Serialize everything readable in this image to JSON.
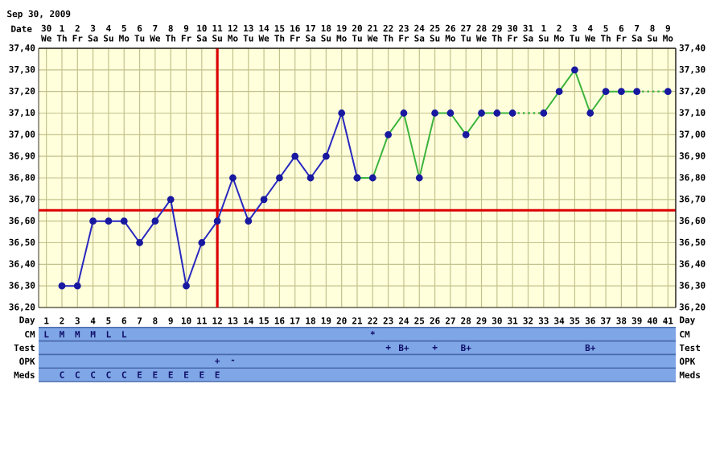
{
  "chart_data": [
    {
      "type": "line",
      "title": "Sep 30, 2009",
      "xlabel": "Date",
      "marker": "circle",
      "grid": true,
      "categories": [
        "30 We",
        "1 Th",
        "2 Fr",
        "3 Sa",
        "4 Su",
        "5 Mo",
        "6 Tu",
        "7 We",
        "8 Th",
        "9 Fr",
        "10 Sa",
        "11 Su",
        "12 Mo",
        "13 Tu",
        "14 We",
        "15 Th",
        "16 Fr",
        "17 Sa",
        "18 Su",
        "19 Mo",
        "20 Tu",
        "21 We",
        "22 Th",
        "23 Fr",
        "24 Sa",
        "25 Su",
        "26 Mo",
        "27 Tu",
        "28 We",
        "29 Th",
        "30 Fr",
        "31 Sa",
        "1 Su",
        "2 Mo",
        "3 Tu",
        "4 We",
        "5 Th",
        "6 Fr",
        "7 Sa",
        "8 Su",
        "9 Mo"
      ],
      "ylim": [
        36.2,
        37.4
      ],
      "yticks": [
        {
          "value": 36.2,
          "label": "36,20"
        },
        {
          "value": 36.3,
          "label": "36,30"
        },
        {
          "value": 36.4,
          "label": "36,40"
        },
        {
          "value": 36.5,
          "label": "36,50"
        },
        {
          "value": 36.6,
          "label": "36,60"
        },
        {
          "value": 36.7,
          "label": "36,70"
        },
        {
          "value": 36.8,
          "label": "36,80"
        },
        {
          "value": 36.9,
          "label": "36,90"
        },
        {
          "value": 37.0,
          "label": "37,00"
        },
        {
          "value": 37.1,
          "label": "37,10"
        },
        {
          "value": 37.2,
          "label": "37,20"
        },
        {
          "value": 37.3,
          "label": "37,30"
        },
        {
          "value": 37.4,
          "label": "37,40"
        }
      ],
      "y2lim": [
        36.2,
        37.4
      ],
      "y2ticks": [
        {
          "value": 36.2,
          "label": "36,20"
        },
        {
          "value": 36.3,
          "label": "36,30"
        },
        {
          "value": 36.4,
          "label": "36,40"
        },
        {
          "value": 36.5,
          "label": "36,50"
        },
        {
          "value": 36.6,
          "label": "36,60"
        },
        {
          "value": 36.7,
          "label": "36,70"
        },
        {
          "value": 36.8,
          "label": "36,80"
        },
        {
          "value": 36.9,
          "label": "36,90"
        },
        {
          "value": 37.0,
          "label": "37,00"
        },
        {
          "value": 37.1,
          "label": "37,10"
        },
        {
          "value": 37.2,
          "label": "37,20"
        },
        {
          "value": 37.3,
          "label": "37,30"
        },
        {
          "value": 37.4,
          "label": "37,40"
        }
      ],
      "ref_lines": [
        {
          "axis": "x",
          "value": "11 Su",
          "color": "#dd0000"
        },
        {
          "axis": "y",
          "value": 36.65,
          "color": "#dd0000"
        }
      ],
      "series": [
        {
          "color": "#2828c0",
          "values": [
            null,
            36.3,
            36.3,
            36.6,
            36.6,
            36.6,
            36.5,
            36.6,
            36.7,
            36.3,
            36.5,
            36.6,
            36.8,
            36.6,
            36.7,
            36.8,
            36.9,
            36.8,
            36.9,
            37.1,
            36.8,
            null,
            null,
            null,
            null,
            null,
            null,
            null,
            null,
            null,
            null,
            null,
            null,
            null,
            null,
            null,
            null,
            null,
            null,
            null,
            null
          ]
        },
        {
          "color": "#3cb43c",
          "values": [
            null,
            null,
            null,
            null,
            null,
            null,
            null,
            null,
            null,
            null,
            null,
            null,
            null,
            null,
            null,
            null,
            null,
            null,
            null,
            null,
            36.8,
            36.8,
            37.0,
            37.1,
            36.8,
            37.1,
            37.1,
            37.0,
            37.1,
            37.1,
            37.1,
            null,
            37.1,
            37.2,
            37.3,
            37.1,
            37.2,
            37.2,
            37.2,
            null,
            37.2
          ]
        }
      ]
    },
    {
      "type": "heatmap",
      "xlabel": "Day",
      "categories": [
        "1",
        "2",
        "3",
        "4",
        "5",
        "6",
        "7",
        "8",
        "9",
        "10",
        "11",
        "12",
        "13",
        "14",
        "15",
        "16",
        "17",
        "18",
        "19",
        "20",
        "21",
        "22",
        "23",
        "24",
        "25",
        "26",
        "27",
        "28",
        "29",
        "30",
        "31",
        "32",
        "33",
        "34",
        "35",
        "36",
        "37",
        "38",
        "39",
        "40",
        "41"
      ],
      "y_categories": [
        "CM",
        "Test",
        "OPK",
        "Meds"
      ],
      "cells": [
        [
          null,
          null,
          null,
          null,
          null,
          null,
          null,
          null,
          null,
          null,
          null,
          null,
          null,
          null,
          null,
          null,
          null,
          null,
          null,
          null,
          null,
          null,
          null,
          null,
          null,
          null,
          null,
          null,
          null,
          null,
          null,
          null,
          null,
          null,
          null,
          null,
          null,
          null,
          null,
          null,
          null
        ],
        [
          null,
          null,
          null,
          null,
          null,
          null,
          null,
          null,
          null,
          null,
          null,
          null,
          null,
          null,
          null,
          null,
          null,
          null,
          null,
          null,
          null,
          null,
          null,
          null,
          null,
          null,
          null,
          null,
          null,
          null,
          null,
          null,
          null,
          null,
          null,
          null,
          null,
          null,
          null,
          null,
          null
        ],
        [
          null,
          null,
          null,
          null,
          null,
          null,
          null,
          null,
          null,
          null,
          null,
          null,
          null,
          null,
          null,
          null,
          null,
          null,
          null,
          null,
          null,
          null,
          null,
          null,
          null,
          null,
          null,
          null,
          null,
          null,
          null,
          null,
          null,
          null,
          null,
          null,
          null,
          null,
          null,
          null,
          null
        ],
        [
          null,
          null,
          null,
          null,
          null,
          null,
          null,
          null,
          null,
          null,
          null,
          null,
          null,
          null,
          null,
          null,
          null,
          null,
          null,
          null,
          null,
          null,
          null,
          null,
          null,
          null,
          null,
          null,
          null,
          null,
          null,
          null,
          null,
          null,
          null,
          null,
          null,
          null,
          null,
          null,
          null
        ]
      ],
      "cell_labels": [
        [
          "L",
          "M",
          "M",
          "M",
          "L",
          "L",
          null,
          null,
          null,
          null,
          null,
          null,
          null,
          null,
          null,
          null,
          null,
          null,
          null,
          null,
          null,
          "*",
          null,
          null,
          null,
          null,
          null,
          null,
          null,
          null,
          null,
          null,
          null,
          null,
          null,
          null,
          null,
          null,
          null,
          null,
          null
        ],
        [
          null,
          null,
          null,
          null,
          null,
          null,
          null,
          null,
          null,
          null,
          null,
          null,
          null,
          null,
          null,
          null,
          null,
          null,
          null,
          null,
          null,
          null,
          "+",
          "B+",
          null,
          "+",
          null,
          "B+",
          null,
          null,
          null,
          null,
          null,
          null,
          null,
          "B+",
          null,
          null,
          null,
          null,
          null
        ],
        [
          null,
          null,
          null,
          null,
          null,
          null,
          null,
          null,
          null,
          null,
          null,
          "+",
          "-",
          null,
          null,
          null,
          null,
          null,
          null,
          null,
          null,
          null,
          null,
          null,
          null,
          null,
          null,
          null,
          null,
          null,
          null,
          null,
          null,
          null,
          null,
          null,
          null,
          null,
          null,
          null,
          null
        ],
        [
          null,
          "C",
          "C",
          "C",
          "C",
          "C",
          "E",
          "E",
          "E",
          "E",
          "E",
          "E",
          null,
          null,
          null,
          null,
          null,
          null,
          null,
          null,
          null,
          null,
          null,
          null,
          null,
          null,
          null,
          null,
          null,
          null,
          null,
          null,
          null,
          null,
          null,
          null,
          null,
          null,
          null,
          null,
          null
        ]
      ]
    }
  ]
}
